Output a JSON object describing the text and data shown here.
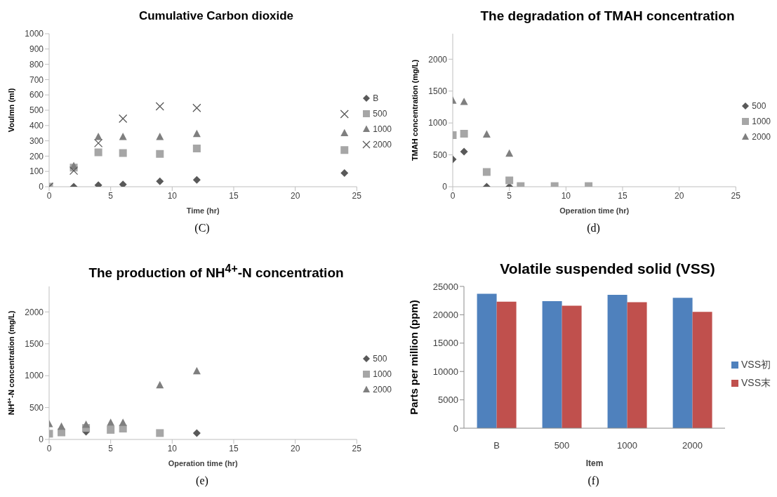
{
  "chart_data": [
    {
      "type": "scatter",
      "title": "Cumulative Carbon dioxide",
      "xlabel": "Time (hr)",
      "ylabel": "Voulmn (ml)",
      "xlim": [
        0,
        25
      ],
      "xticks": [
        0,
        5,
        10,
        15,
        20,
        25
      ],
      "ylim": [
        0,
        1000
      ],
      "yticks": [
        0,
        100,
        200,
        300,
        400,
        500,
        600,
        700,
        800,
        900,
        1000
      ],
      "legend": "right",
      "annotations": [
        "(C)"
      ],
      "series": [
        {
          "name": "B",
          "color": "#595959",
          "marker": "diamond",
          "x": [
            2,
            4,
            6,
            9,
            12,
            24
          ],
          "values": [
            0,
            10,
            15,
            35,
            45,
            90
          ]
        },
        {
          "name": "500",
          "color": "#a6a6a6",
          "marker": "square",
          "x": [
            0,
            2,
            4,
            6,
            9,
            12,
            24
          ],
          "values": [
            0,
            125,
            225,
            220,
            215,
            250,
            240
          ]
        },
        {
          "name": "1000",
          "color": "#7f7f7f",
          "marker": "triangle",
          "x": [
            2,
            4,
            6,
            9,
            12,
            24
          ],
          "values": [
            135,
            325,
            325,
            325,
            345,
            350
          ]
        },
        {
          "name": "2000",
          "color": "#595959",
          "marker": "cross",
          "x": [
            0,
            2,
            4,
            6,
            9,
            12,
            24
          ],
          "values": [
            0,
            105,
            285,
            445,
            525,
            515,
            475
          ]
        }
      ]
    },
    {
      "type": "scatter",
      "title": "The degradation of TMAH concentration",
      "xlabel": "Operation time (hr)",
      "ylabel": "TMAH concentration (mg/L)",
      "xlim": [
        0,
        25
      ],
      "xticks": [
        0,
        5,
        10,
        15,
        20,
        25
      ],
      "ylim": [
        0,
        2400
      ],
      "yticks": [
        0,
        500,
        1000,
        1500,
        2000
      ],
      "legend": "right",
      "annotations": [
        "(d)"
      ],
      "series": [
        {
          "name": "500",
          "color": "#595959",
          "marker": "diamond",
          "x": [
            0,
            1,
            3,
            5
          ],
          "values": [
            430,
            550,
            0,
            0
          ]
        },
        {
          "name": "1000",
          "color": "#a6a6a6",
          "marker": "square",
          "x": [
            0,
            1,
            3,
            5,
            6,
            9,
            12
          ],
          "values": [
            810,
            830,
            230,
            100,
            10,
            10,
            10
          ]
        },
        {
          "name": "2000",
          "color": "#7f7f7f",
          "marker": "triangle",
          "x": [
            0,
            1,
            3,
            5
          ],
          "values": [
            1350,
            1330,
            820,
            520
          ]
        }
      ]
    },
    {
      "type": "scatter",
      "title": "The production of NH$^{4+}$-N concentration",
      "xlabel": "Operation time (hr)",
      "ylabel": "NH$^{4+}$-N  concentration (mg/L)",
      "xlim": [
        0,
        25
      ],
      "xticks": [
        0,
        5,
        10,
        15,
        20,
        25
      ],
      "ylim": [
        0,
        2400
      ],
      "yticks": [
        0,
        500,
        1000,
        1500,
        2000
      ],
      "legend": "right",
      "annotations": [
        "(e)"
      ],
      "series": [
        {
          "name": "500",
          "color": "#595959",
          "marker": "diamond",
          "x": [
            3,
            12
          ],
          "values": [
            120,
            100
          ]
        },
        {
          "name": "1000",
          "color": "#a6a6a6",
          "marker": "square",
          "x": [
            0,
            1,
            3,
            5,
            6,
            9
          ],
          "values": [
            90,
            110,
            180,
            150,
            170,
            100
          ]
        },
        {
          "name": "2000",
          "color": "#7f7f7f",
          "marker": "triangle",
          "x": [
            0,
            1,
            3,
            5,
            6,
            9,
            12
          ],
          "values": [
            240,
            200,
            230,
            260,
            260,
            850,
            1070
          ]
        }
      ]
    },
    {
      "type": "bar",
      "title": "Volatile suspended solid (VSS)",
      "xlabel": "Item",
      "ylabel": "Parts per million (ppm)",
      "categories": [
        "B",
        "500",
        "1000",
        "2000"
      ],
      "ylim": [
        0,
        25000
      ],
      "yticks": [
        0,
        5000,
        10000,
        15000,
        20000,
        25000
      ],
      "legend": "right",
      "annotations": [
        "(f)"
      ],
      "series": [
        {
          "name": "VSS初",
          "color": "#4f81bd",
          "values": [
            23700,
            22400,
            23500,
            23000
          ]
        },
        {
          "name": "VSS末",
          "color": "#c0504d",
          "values": [
            22300,
            21600,
            22200,
            20500
          ]
        }
      ]
    }
  ]
}
